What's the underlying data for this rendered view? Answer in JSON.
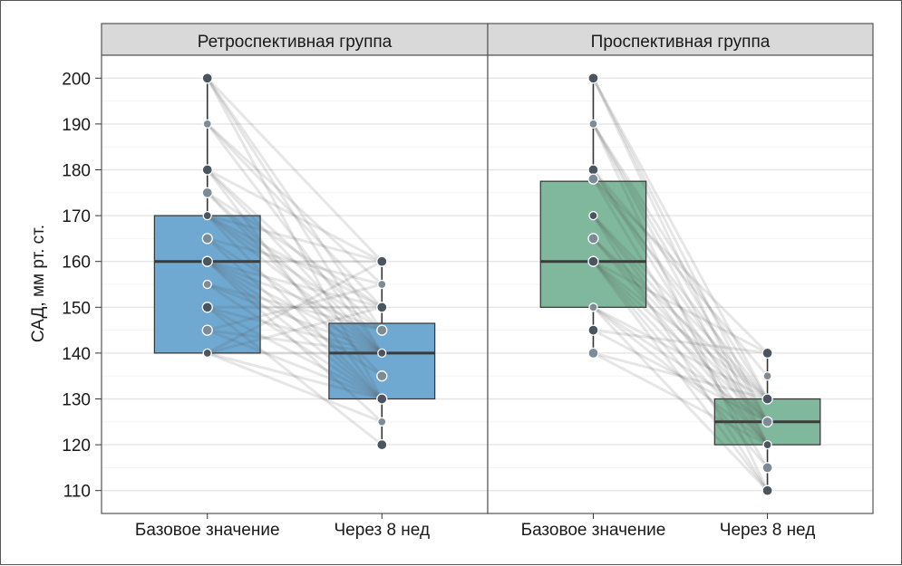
{
  "chart_data": {
    "type": "boxplot-paired",
    "ylabel": "САД, мм рт. ст.",
    "ylim": [
      105,
      205
    ],
    "yticks": [
      110,
      120,
      130,
      140,
      150,
      160,
      170,
      180,
      190,
      200
    ],
    "categories": [
      "Базовое значение",
      "Через 8 нед"
    ],
    "grid": true,
    "panels": [
      {
        "name": "Ретроспективная группа",
        "color": "#6fa8d0",
        "boxes": [
          {
            "category": "Базовое значение",
            "q1": 140,
            "median": 160,
            "q3": 170,
            "min": 140,
            "max": 200
          },
          {
            "category": "Через 8 нед",
            "q1": 130,
            "median": 140,
            "q3": 146.5,
            "min": 120,
            "max": 160
          }
        ],
        "points": [
          {
            "category": "Базовое значение",
            "values": [
              200,
              190,
              180,
              175,
              170,
              165,
              160,
              155,
              150,
              145,
              140
            ]
          },
          {
            "category": "Через 8 нед",
            "values": [
              160,
              155,
              150,
              145,
              140,
              135,
              130,
              125,
              120
            ]
          }
        ],
        "pairs": [
          [
            200,
            160
          ],
          [
            200,
            145
          ],
          [
            200,
            140
          ],
          [
            200,
            130
          ],
          [
            190,
            150
          ],
          [
            190,
            140
          ],
          [
            190,
            155
          ],
          [
            180,
            140
          ],
          [
            180,
            145
          ],
          [
            180,
            160
          ],
          [
            180,
            130
          ],
          [
            175,
            150
          ],
          [
            175,
            140
          ],
          [
            175,
            135
          ],
          [
            170,
            160
          ],
          [
            170,
            145
          ],
          [
            170,
            140
          ],
          [
            170,
            130
          ],
          [
            170,
            150
          ],
          [
            165,
            155
          ],
          [
            165,
            140
          ],
          [
            165,
            130
          ],
          [
            160,
            160
          ],
          [
            160,
            150
          ],
          [
            160,
            140
          ],
          [
            160,
            130
          ],
          [
            160,
            145
          ],
          [
            160,
            125
          ],
          [
            160,
            135
          ],
          [
            155,
            140
          ],
          [
            155,
            130
          ],
          [
            155,
            145
          ],
          [
            150,
            150
          ],
          [
            150,
            140
          ],
          [
            150,
            130
          ],
          [
            150,
            120
          ],
          [
            145,
            140
          ],
          [
            145,
            155
          ],
          [
            145,
            130
          ],
          [
            140,
            140
          ],
          [
            140,
            130
          ],
          [
            140,
            160
          ],
          [
            140,
            150
          ],
          [
            140,
            125
          ]
        ]
      },
      {
        "name": "Проспективная группа",
        "color": "#7fb89c",
        "boxes": [
          {
            "category": "Базовое значение",
            "q1": 150,
            "median": 160,
            "q3": 177.5,
            "min": 140,
            "max": 200
          },
          {
            "category": "Через 8 нед",
            "q1": 120,
            "median": 125,
            "q3": 130,
            "min": 110,
            "max": 140
          }
        ],
        "points": [
          {
            "category": "Базовое значение",
            "values": [
              200,
              190,
              180,
              178,
              170,
              165,
              160,
              150,
              145,
              140
            ]
          },
          {
            "category": "Через 8 нед",
            "values": [
              140,
              135,
              130,
              125,
              120,
              115,
              110
            ]
          }
        ],
        "pairs": [
          [
            200,
            130
          ],
          [
            200,
            125
          ],
          [
            200,
            120
          ],
          [
            190,
            130
          ],
          [
            190,
            120
          ],
          [
            190,
            110
          ],
          [
            190,
            125
          ],
          [
            180,
            135
          ],
          [
            180,
            120
          ],
          [
            180,
            125
          ],
          [
            178,
            140
          ],
          [
            178,
            115
          ],
          [
            178,
            130
          ],
          [
            170,
            125
          ],
          [
            170,
            120
          ],
          [
            170,
            130
          ],
          [
            170,
            110
          ],
          [
            165,
            130
          ],
          [
            165,
            120
          ],
          [
            165,
            125
          ],
          [
            160,
            125
          ],
          [
            160,
            120
          ],
          [
            160,
            110
          ],
          [
            160,
            130
          ],
          [
            160,
            115
          ],
          [
            160,
            140
          ],
          [
            150,
            125
          ],
          [
            150,
            120
          ],
          [
            150,
            130
          ],
          [
            150,
            110
          ],
          [
            145,
            125
          ],
          [
            145,
            140
          ],
          [
            140,
            130
          ],
          [
            140,
            120
          ]
        ]
      }
    ]
  }
}
